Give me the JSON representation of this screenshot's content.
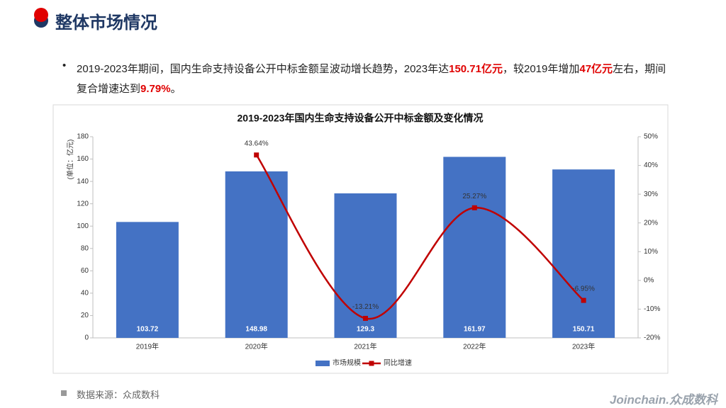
{
  "header": {
    "title": "整体市场情况"
  },
  "bullet": [
    {
      "text": "2019-2023年期间，国内生命支持设备公开中标金额呈波动增长趋势，2023年达",
      "highlight": false
    },
    {
      "text": "150.71亿元",
      "highlight": true
    },
    {
      "text": "，较2019年增加",
      "highlight": false
    },
    {
      "text": "47亿元",
      "highlight": true
    },
    {
      "text": "左右，期间复合增速达到",
      "highlight": false
    },
    {
      "text": "9.79%",
      "highlight": true
    },
    {
      "text": "。",
      "highlight": false
    }
  ],
  "source": "数据来源：众成数科",
  "logo": "Joinchain.众成数科",
  "chart_data": {
    "type": "bar",
    "title": "2019-2023年国内生命支持设备公开中标金额及变化情况",
    "y_label": "(单位：亿元)",
    "categories": [
      "2019年",
      "2020年",
      "2021年",
      "2022年",
      "2023年"
    ],
    "series": [
      {
        "name": "市场规模",
        "type": "bar",
        "color": "#4472c4",
        "values": [
          103.72,
          148.98,
          129.3,
          161.97,
          150.71
        ]
      },
      {
        "name": "同比增速",
        "type": "line",
        "color": "#c00000",
        "axis": "y2",
        "values": [
          null,
          43.64,
          -13.21,
          25.27,
          -6.95
        ],
        "value_labels": [
          null,
          "43.64%",
          "-13.21%",
          "25.27%",
          "-6.95%"
        ]
      }
    ],
    "ylim": [
      0,
      180
    ],
    "yticks": [
      0,
      20,
      40,
      60,
      80,
      100,
      120,
      140,
      160,
      180
    ],
    "y2lim": [
      -20,
      50
    ],
    "y2ticks": [
      {
        "value": -20,
        "label": "-20%"
      },
      {
        "value": -10,
        "label": "-10%"
      },
      {
        "value": 0,
        "label": "0%"
      },
      {
        "value": 10,
        "label": "10%"
      },
      {
        "value": 20,
        "label": "20%"
      },
      {
        "value": 30,
        "label": "30%"
      },
      {
        "value": 40,
        "label": "40%"
      },
      {
        "value": 50,
        "label": "50%"
      }
    ],
    "legend": "bottom"
  }
}
